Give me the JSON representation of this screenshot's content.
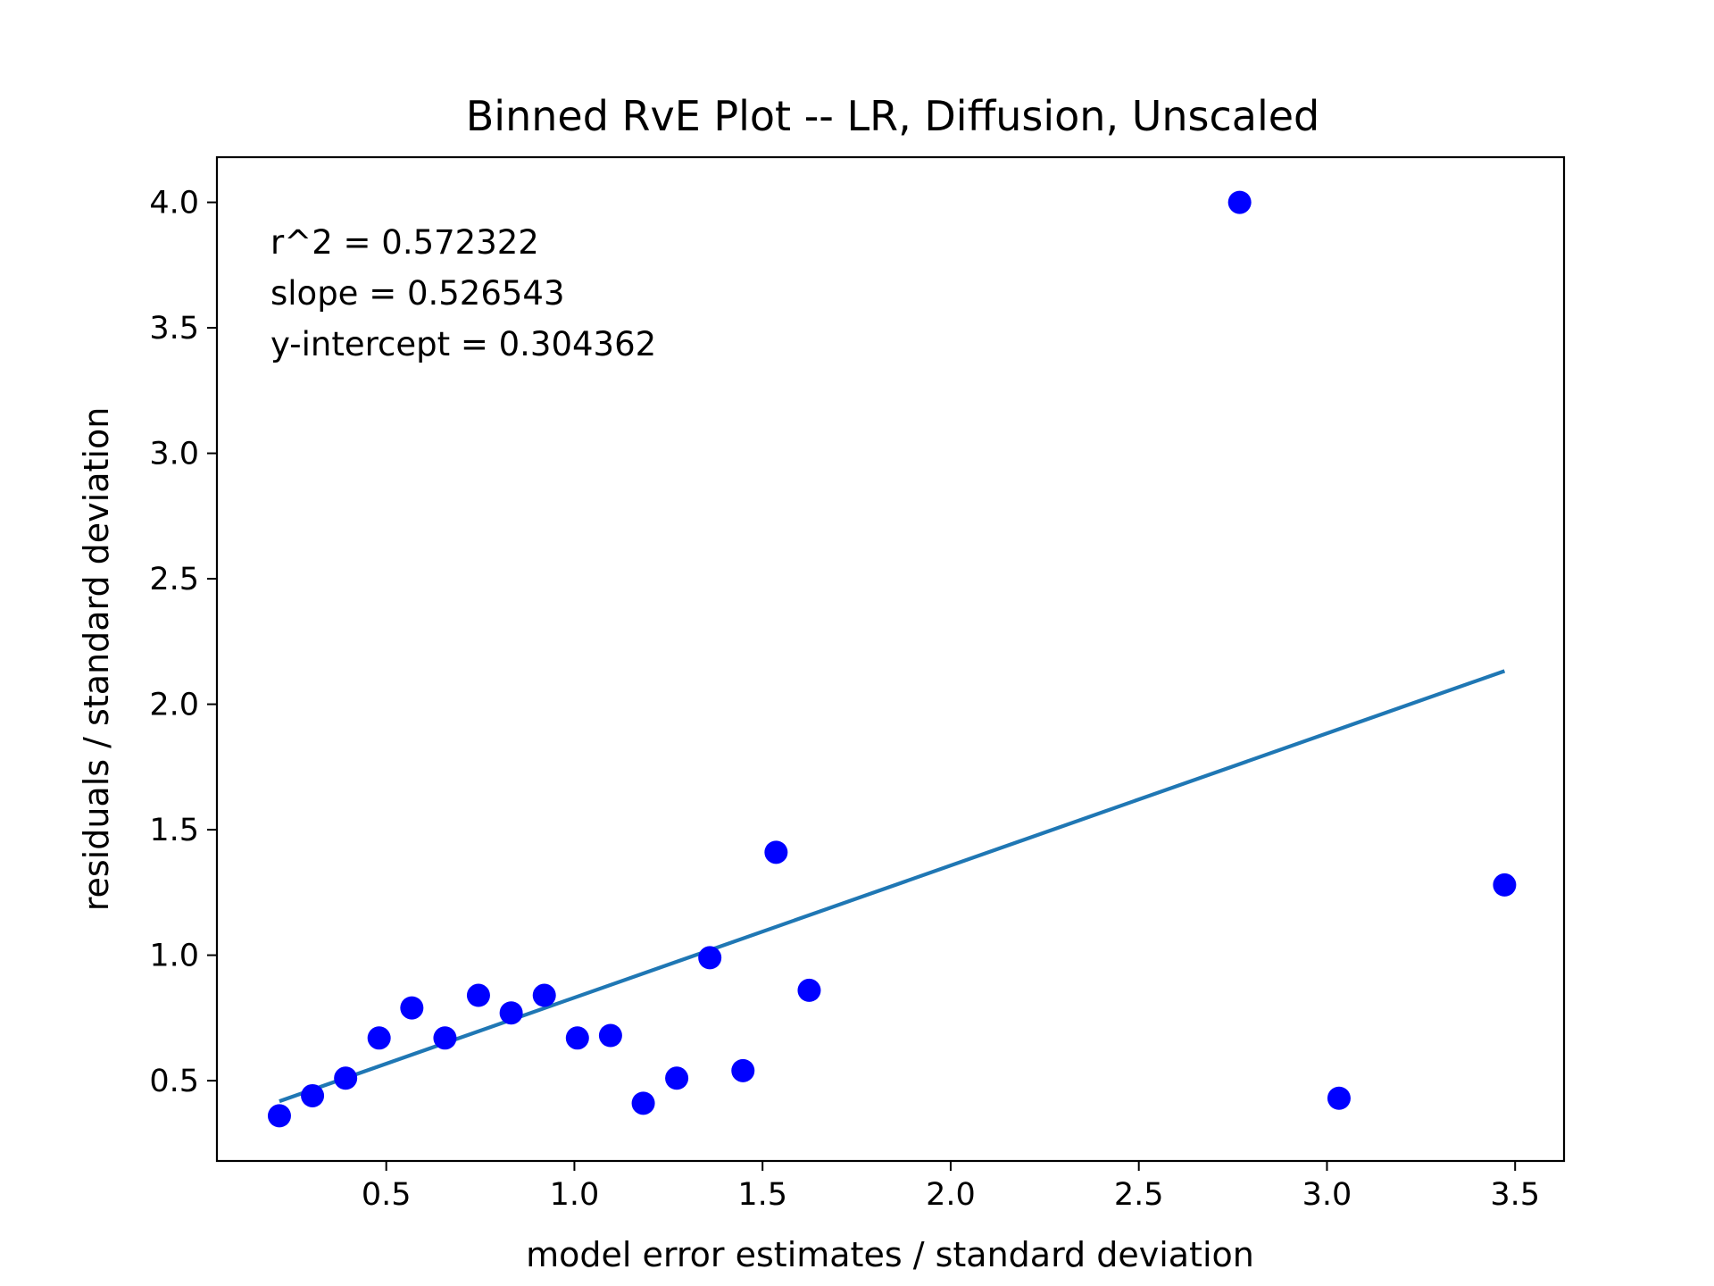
{
  "chart_data": {
    "type": "scatter",
    "title": "Binned RvE Plot -- LR, Diffusion, Unscaled",
    "xlabel": "model error estimates / standard deviation",
    "ylabel": "residuals / standard deviation",
    "xlim": [
      0.05,
      3.63
    ],
    "ylim": [
      0.18,
      4.18
    ],
    "xticks": [
      0.5,
      1.0,
      1.5,
      2.0,
      2.5,
      3.0,
      3.5
    ],
    "yticks": [
      0.5,
      1.0,
      1.5,
      2.0,
      2.5,
      3.0,
      3.5,
      4.0
    ],
    "grid": false,
    "annotations": [
      "r^2 = 0.572322",
      "slope = 0.526543",
      "y-intercept = 0.304362"
    ],
    "series": [
      {
        "kind": "scatter",
        "color": "#0000ff",
        "points": [
          [
            0.216,
            0.36
          ],
          [
            0.304,
            0.44
          ],
          [
            0.392,
            0.51
          ],
          [
            0.481,
            0.67
          ],
          [
            0.568,
            0.79
          ],
          [
            0.656,
            0.67
          ],
          [
            0.745,
            0.84
          ],
          [
            0.832,
            0.77
          ],
          [
            0.92,
            0.84
          ],
          [
            1.008,
            0.67
          ],
          [
            1.096,
            0.68
          ],
          [
            1.183,
            0.41
          ],
          [
            1.272,
            0.51
          ],
          [
            1.36,
            0.99
          ],
          [
            1.448,
            0.54
          ],
          [
            1.536,
            1.41
          ],
          [
            1.624,
            0.86
          ],
          [
            2.768,
            4.0
          ],
          [
            3.032,
            0.43
          ],
          [
            3.472,
            1.28
          ]
        ]
      },
      {
        "kind": "line",
        "color": "#1f77b4",
        "slope": 0.526543,
        "intercept": 0.304362,
        "x_range": [
          0.216,
          3.472
        ]
      }
    ]
  }
}
